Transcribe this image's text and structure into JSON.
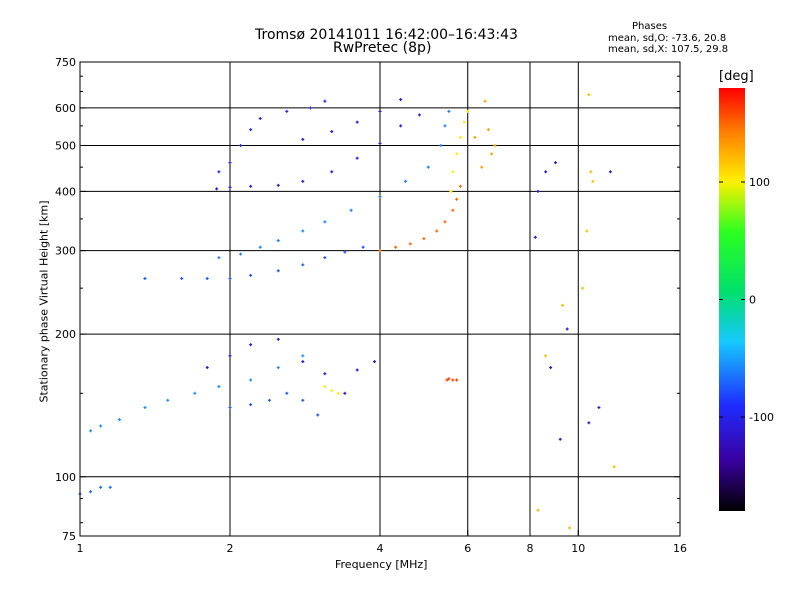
{
  "chart_data": {
    "type": "scatter",
    "title": "Tromsø 20141011 16:42:00–16:43:43",
    "subtitle": "RwPretec (8p)",
    "stats_title": "Phases",
    "stats_o": "mean, sd,O: -73.6, 20.8",
    "stats_x": "mean, sd,X: 107.5, 29.8",
    "xlabel": "Frequency [MHz]",
    "ylabel": "Stationary phase Virtual Height [km]",
    "xscale": "log",
    "yscale": "log",
    "xlim": [
      1,
      16
    ],
    "ylim": [
      75,
      750
    ],
    "x_ticks": [
      "1",
      "2",
      "4",
      "6",
      "8",
      "10",
      "16"
    ],
    "x_grid": [
      2,
      4,
      6,
      8,
      10
    ],
    "y_ticks": [
      "75",
      "100",
      "200",
      "300",
      "400",
      "500",
      "600",
      "750"
    ],
    "y_grid": [
      100,
      200,
      300,
      400,
      500,
      600
    ],
    "grid": true,
    "colorbar": {
      "label": "[deg]",
      "ticks": [
        "100",
        "0",
        "-100"
      ],
      "range": [
        -180,
        180
      ]
    },
    "traces": [
      {
        "name": "",
        "phase": -105,
        "points": [
          [
            1.88,
            405
          ],
          [
            2.0,
            408
          ],
          [
            2.2,
            410
          ],
          [
            2.5,
            412
          ],
          [
            2.8,
            420
          ],
          [
            3.2,
            440
          ],
          [
            3.6,
            470
          ],
          [
            4.0,
            505
          ],
          [
            4.4,
            550
          ],
          [
            4.8,
            580
          ]
        ]
      },
      {
        "name": "",
        "phase": -90,
        "points": [
          [
            1.9,
            440
          ],
          [
            2.0,
            460
          ],
          [
            2.1,
            500
          ],
          [
            2.2,
            540
          ],
          [
            2.3,
            570
          ],
          [
            2.6,
            590
          ],
          [
            2.9,
            600
          ],
          [
            3.1,
            620
          ]
        ]
      },
      {
        "name": "",
        "phase": -110,
        "points": [
          [
            2.8,
            515
          ],
          [
            3.2,
            535
          ],
          [
            3.6,
            560
          ],
          [
            4.0,
            590
          ],
          [
            4.4,
            625
          ]
        ]
      },
      {
        "name": "",
        "phase": -75,
        "points": [
          [
            1.35,
            262
          ],
          [
            1.6,
            262
          ],
          [
            1.8,
            262
          ],
          [
            2.0,
            262
          ],
          [
            2.2,
            266
          ],
          [
            2.5,
            272
          ],
          [
            2.8,
            280
          ],
          [
            3.1,
            290
          ],
          [
            3.4,
            298
          ],
          [
            3.7,
            305
          ]
        ]
      },
      {
        "name": "",
        "phase": -60,
        "points": [
          [
            1.9,
            290
          ],
          [
            2.1,
            295
          ],
          [
            2.3,
            305
          ],
          [
            2.5,
            315
          ],
          [
            2.8,
            330
          ],
          [
            3.1,
            345
          ],
          [
            3.5,
            365
          ],
          [
            4.0,
            390
          ],
          [
            4.5,
            420
          ],
          [
            5.0,
            450
          ],
          [
            5.3,
            500
          ],
          [
            5.4,
            550
          ],
          [
            5.5,
            590
          ]
        ]
      },
      {
        "name": "",
        "phase": 150,
        "points": [
          [
            4.0,
            300
          ],
          [
            4.3,
            305
          ],
          [
            4.6,
            310
          ],
          [
            4.9,
            318
          ],
          [
            5.2,
            330
          ],
          [
            5.4,
            345
          ],
          [
            5.6,
            365
          ],
          [
            5.7,
            385
          ],
          [
            5.8,
            410
          ]
        ]
      },
      {
        "name": "",
        "phase": 100,
        "points": [
          [
            5.55,
            400
          ],
          [
            5.6,
            440
          ],
          [
            5.7,
            480
          ],
          [
            5.8,
            520
          ],
          [
            5.9,
            560
          ],
          [
            6.0,
            590
          ]
        ]
      },
      {
        "name": "",
        "phase": -55,
        "points": [
          [
            1.05,
            125
          ],
          [
            1.1,
            128
          ],
          [
            1.2,
            132
          ],
          [
            1.35,
            140
          ],
          [
            1.5,
            145
          ],
          [
            1.7,
            150
          ],
          [
            1.9,
            155
          ],
          [
            2.2,
            160
          ],
          [
            2.5,
            170
          ],
          [
            2.8,
            180
          ]
        ]
      },
      {
        "name": "",
        "phase": -110,
        "points": [
          [
            1.8,
            170
          ],
          [
            2.0,
            180
          ],
          [
            2.2,
            190
          ],
          [
            2.5,
            195
          ],
          [
            2.8,
            175
          ],
          [
            3.1,
            165
          ],
          [
            3.4,
            150
          ],
          [
            3.6,
            168
          ],
          [
            3.9,
            175
          ]
        ]
      },
      {
        "name": "",
        "phase": -75,
        "points": [
          [
            2.0,
            140
          ],
          [
            2.2,
            142
          ],
          [
            2.4,
            145
          ],
          [
            2.6,
            150
          ],
          [
            2.8,
            145
          ],
          [
            3.0,
            135
          ]
        ]
      },
      {
        "name": "",
        "phase": -70,
        "points": [
          [
            1.0,
            92
          ],
          [
            1.05,
            93
          ],
          [
            1.1,
            95
          ],
          [
            1.15,
            95
          ]
        ]
      },
      {
        "name": "",
        "phase": 160,
        "points": [
          [
            5.45,
            160
          ],
          [
            5.5,
            161
          ],
          [
            5.6,
            160
          ],
          [
            5.7,
            160
          ]
        ]
      },
      {
        "name": "",
        "phase": 100,
        "points": [
          [
            3.1,
            155
          ],
          [
            3.2,
            152
          ],
          [
            3.3,
            150
          ]
        ]
      },
      {
        "name": "",
        "phase": 130,
        "points": [
          [
            6.5,
            620
          ],
          [
            6.6,
            540
          ],
          [
            6.7,
            480
          ],
          [
            6.4,
            450
          ],
          [
            6.8,
            500
          ],
          [
            6.2,
            520
          ]
        ]
      },
      {
        "name": "",
        "phase": -110,
        "points": [
          [
            8.3,
            400
          ],
          [
            8.6,
            440
          ],
          [
            9.0,
            460
          ],
          [
            8.2,
            320
          ],
          [
            8.8,
            170
          ],
          [
            9.2,
            120
          ],
          [
            9.5,
            205
          ],
          [
            10.5,
            130
          ],
          [
            11.0,
            140
          ],
          [
            11.6,
            440
          ]
        ]
      },
      {
        "name": "",
        "phase": 120,
        "points": [
          [
            10.5,
            640
          ],
          [
            10.6,
            440
          ],
          [
            10.7,
            420
          ],
          [
            10.4,
            330
          ],
          [
            10.2,
            250
          ],
          [
            11.8,
            105
          ],
          [
            9.6,
            78
          ],
          [
            8.3,
            85
          ],
          [
            8.6,
            180
          ],
          [
            9.3,
            230
          ]
        ]
      }
    ]
  }
}
